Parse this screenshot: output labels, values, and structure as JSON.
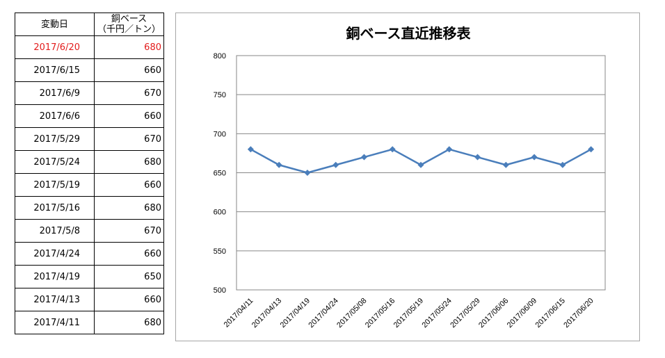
{
  "table": {
    "header_date": "変動日",
    "header_price_line1": "銅ベース",
    "header_price_line2": "（千円／トン）",
    "rows": [
      {
        "date": "2017/6/20",
        "price": "680"
      },
      {
        "date": "2017/6/15",
        "price": "660"
      },
      {
        "date": "2017/6/9",
        "price": "670"
      },
      {
        "date": "2017/6/6",
        "price": "660"
      },
      {
        "date": "2017/5/29",
        "price": "670"
      },
      {
        "date": "2017/5/24",
        "price": "680"
      },
      {
        "date": "2017/5/19",
        "price": "660"
      },
      {
        "date": "2017/5/16",
        "price": "680"
      },
      {
        "date": "2017/5/8",
        "price": "670"
      },
      {
        "date": "2017/4/24",
        "price": "660"
      },
      {
        "date": "2017/4/19",
        "price": "650"
      },
      {
        "date": "2017/4/13",
        "price": "660"
      },
      {
        "date": "2017/4/11",
        "price": "680"
      }
    ],
    "highlight_color": "#e31b1b"
  },
  "chart_data": {
    "type": "line",
    "title": "銅ベース直近推移表",
    "categories": [
      "2017/04/11",
      "2017/04/13",
      "2017/04/19",
      "2017/04/24",
      "2017/05/08",
      "2017/05/16",
      "2017/05/19",
      "2017/05/24",
      "2017/05/29",
      "2017/06/06",
      "2017/06/09",
      "2017/06/15",
      "2017/06/20"
    ],
    "series": [
      {
        "values": [
          680,
          660,
          650,
          660,
          670,
          680,
          660,
          680,
          670,
          660,
          670,
          660,
          680
        ],
        "color": "#4a7ebb",
        "marker": "diamond"
      }
    ],
    "ylim": [
      500,
      800
    ],
    "yticks": [
      500,
      550,
      600,
      650,
      700,
      750,
      800
    ],
    "grid": true,
    "legend": "none"
  }
}
